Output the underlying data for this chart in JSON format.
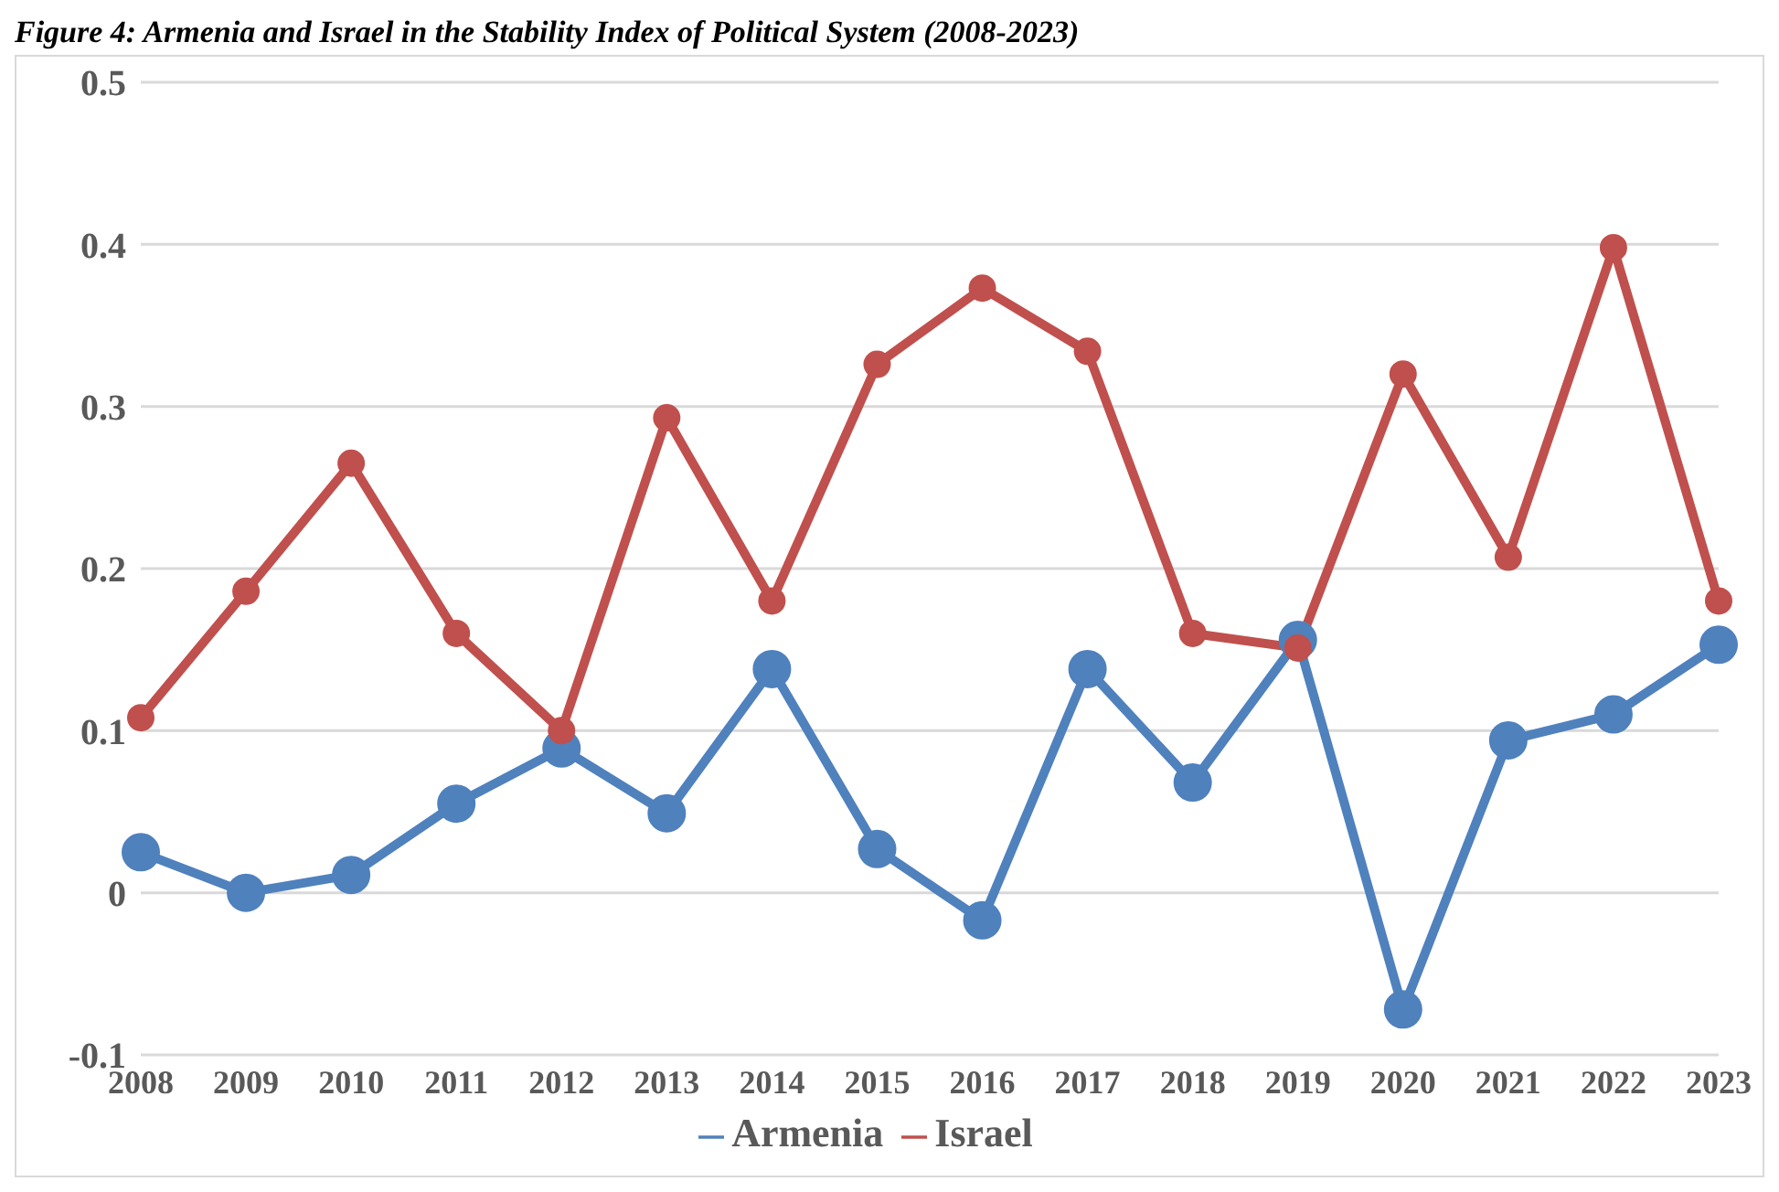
{
  "chart_data": {
    "type": "line",
    "title": "Figure 4: Armenia and Israel in the Stability Index of Political System (2008-2023)",
    "categories": [
      "2008",
      "2009",
      "2010",
      "2011",
      "2012",
      "2013",
      "2014",
      "2015",
      "2016",
      "2017",
      "2018",
      "2019",
      "2020",
      "2021",
      "2022",
      "2023"
    ],
    "series": [
      {
        "name": "Armenia",
        "color": "#4f81bd",
        "values": [
          0.025,
          0.0,
          0.011,
          0.055,
          0.089,
          0.049,
          0.138,
          0.027,
          -0.017,
          0.138,
          0.068,
          0.156,
          -0.072,
          0.094,
          0.11,
          0.153
        ]
      },
      {
        "name": "Israel",
        "color": "#c0504d",
        "values": [
          0.108,
          0.186,
          0.265,
          0.16,
          0.1,
          0.293,
          0.18,
          0.326,
          0.373,
          0.334,
          0.16,
          0.151,
          0.32,
          0.207,
          0.398,
          0.18
        ]
      }
    ],
    "ylim": [
      -0.1,
      0.5
    ],
    "yticks": [
      -0.1,
      0,
      0.1,
      0.2,
      0.3,
      0.4,
      0.5
    ],
    "grid": "y",
    "legend": "bottom",
    "marker": "circle",
    "line_style": "solid"
  }
}
